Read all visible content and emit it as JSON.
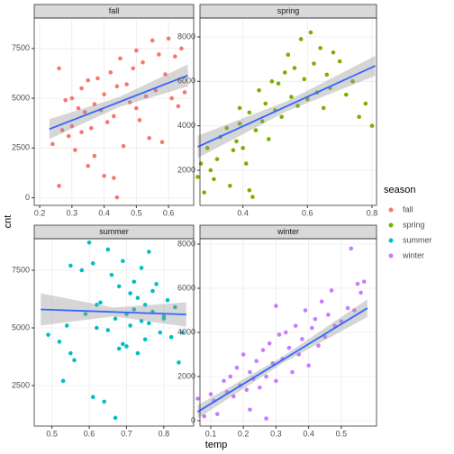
{
  "figure": {
    "xlabel": "temp",
    "ylabel": "cnt",
    "legend_title": "season"
  },
  "chart_data": [
    {
      "type": "scatter",
      "title": "fall",
      "xlim": [
        0.183,
        0.678
      ],
      "ylim": [
        -380,
        9030
      ],
      "xticks": [
        0.2,
        0.3,
        0.4,
        0.5,
        0.6
      ],
      "yticks": [
        0,
        2500,
        5000,
        7500
      ],
      "grid": true,
      "series": [
        {
          "name": "fall",
          "color": "#F8766D",
          "x": [
            0.24,
            0.26,
            0.27,
            0.28,
            0.29,
            0.3,
            0.3,
            0.31,
            0.32,
            0.33,
            0.33,
            0.34,
            0.35,
            0.35,
            0.36,
            0.37,
            0.37,
            0.38,
            0.39,
            0.4,
            0.4,
            0.41,
            0.42,
            0.43,
            0.43,
            0.44,
            0.45,
            0.46,
            0.47,
            0.48,
            0.49,
            0.5,
            0.5,
            0.51,
            0.52,
            0.53,
            0.54,
            0.55,
            0.56,
            0.57,
            0.58,
            0.59,
            0.6,
            0.61,
            0.62,
            0.63,
            0.64,
            0.65,
            0.26,
            0.44
          ],
          "values": [
            2700,
            600,
            3400,
            4900,
            3100,
            5000,
            3600,
            2400,
            4500,
            5500,
            3300,
            4300,
            1600,
            5900,
            3500,
            4700,
            2100,
            6000,
            4400,
            1100,
            5200,
            3800,
            6300,
            4100,
            1000,
            5600,
            7000,
            2600,
            5700,
            4800,
            6500,
            4500,
            7400,
            3900,
            6800,
            5100,
            3000,
            7900,
            5400,
            7200,
            2800,
            6200,
            8000,
            5000,
            7100,
            4600,
            7500,
            5300,
            6500,
            22
          ]
        }
      ],
      "fit": {
        "color": "#3366FF",
        "x": [
          0.23,
          0.445,
          0.66
        ],
        "values": [
          3450,
          4800,
          6150
        ],
        "lower": [
          2950,
          4550,
          5600
        ],
        "upper": [
          3950,
          5050,
          6700
        ]
      }
    },
    {
      "type": "scatter",
      "title": "spring",
      "xlim": [
        0.267,
        0.814
      ],
      "ylim": [
        419,
        8851
      ],
      "xticks": [
        0.4,
        0.6,
        0.8
      ],
      "yticks": [
        2000,
        4000,
        6000,
        8000
      ],
      "grid": true,
      "series": [
        {
          "name": "spring",
          "color": "#7CAE00",
          "x": [
            0.26,
            0.27,
            0.28,
            0.29,
            0.3,
            0.31,
            0.32,
            0.33,
            0.35,
            0.36,
            0.37,
            0.38,
            0.39,
            0.4,
            0.41,
            0.42,
            0.43,
            0.44,
            0.45,
            0.46,
            0.47,
            0.48,
            0.49,
            0.5,
            0.51,
            0.52,
            0.53,
            0.54,
            0.55,
            0.56,
            0.57,
            0.58,
            0.59,
            0.6,
            0.61,
            0.62,
            0.63,
            0.64,
            0.65,
            0.66,
            0.67,
            0.68,
            0.7,
            0.72,
            0.74,
            0.76,
            0.78,
            0.8,
            0.42,
            0.39
          ],
          "values": [
            1700,
            2300,
            1000,
            3000,
            2000,
            1600,
            2500,
            3500,
            3900,
            1300,
            2900,
            3300,
            4100,
            3000,
            2300,
            4600,
            800,
            3800,
            5600,
            4200,
            5000,
            3400,
            6000,
            4700,
            5900,
            4400,
            6400,
            7200,
            5300,
            6600,
            4900,
            7900,
            6100,
            5200,
            8200,
            6800,
            5500,
            7500,
            4800,
            6300,
            5700,
            7300,
            6900,
            5400,
            6000,
            4400,
            5000,
            4000,
            1100,
            4800
          ]
        }
      ],
      "fit": {
        "color": "#3366FF",
        "x": [
          0.26,
          0.535,
          0.81
        ],
        "values": [
          3050,
          4875,
          6700
        ],
        "lower": [
          2550,
          4650,
          6250
        ],
        "upper": [
          3550,
          5100,
          7150
        ]
      }
    },
    {
      "type": "scatter",
      "title": "summer",
      "xlim": [
        0.4525,
        0.88
      ],
      "ylim": [
        742,
        8867
      ],
      "xticks": [
        0.5,
        0.6,
        0.7,
        0.8
      ],
      "yticks": [
        2500,
        5000,
        7500
      ],
      "grid": true,
      "series": [
        {
          "name": "summer",
          "color": "#00BFC4",
          "x": [
            0.49,
            0.52,
            0.53,
            0.55,
            0.56,
            0.58,
            0.59,
            0.6,
            0.61,
            0.62,
            0.63,
            0.64,
            0.65,
            0.66,
            0.67,
            0.67,
            0.68,
            0.69,
            0.69,
            0.7,
            0.7,
            0.71,
            0.71,
            0.72,
            0.72,
            0.73,
            0.73,
            0.74,
            0.74,
            0.75,
            0.75,
            0.76,
            0.76,
            0.77,
            0.78,
            0.79,
            0.8,
            0.81,
            0.82,
            0.83,
            0.84,
            0.85,
            0.62,
            0.65,
            0.55,
            0.54,
            0.68,
            0.61,
            0.77,
            0.8
          ],
          "values": [
            4700,
            4400,
            2700,
            7700,
            3600,
            7500,
            5600,
            8700,
            2000,
            5000,
            6100,
            1800,
            4900,
            7300,
            1100,
            5400,
            6800,
            4300,
            7900,
            5600,
            4200,
            6500,
            5100,
            7000,
            5800,
            3900,
            6300,
            5300,
            7600,
            4500,
            6000,
            5200,
            8300,
            5700,
            6900,
            4800,
            5500,
            6200,
            4600,
            5900,
            3500,
            4800,
            6000,
            8400,
            3900,
            5100,
            4100,
            7800,
            6600,
            5400
          ]
        }
      ],
      "fit": {
        "color": "#3366FF",
        "x": [
          0.47,
          0.665,
          0.86
        ],
        "values": [
          5800,
          5690,
          5580
        ],
        "lower": [
          5100,
          5500,
          5050
        ],
        "upper": [
          6500,
          5880,
          6110
        ]
      }
    },
    {
      "type": "scatter",
      "title": "winter",
      "xlim": [
        0.067,
        0.608
      ],
      "ylim": [
        -245,
        8245
      ],
      "xticks": [
        0.1,
        0.2,
        0.3,
        0.4,
        0.5
      ],
      "yticks": [
        0,
        2000,
        4000,
        6000,
        8000
      ],
      "grid": true,
      "series": [
        {
          "name": "winter",
          "color": "#C77CFF",
          "x": [
            0.06,
            0.08,
            0.1,
            0.11,
            0.12,
            0.14,
            0.15,
            0.16,
            0.17,
            0.18,
            0.19,
            0.2,
            0.21,
            0.22,
            0.23,
            0.24,
            0.25,
            0.26,
            0.27,
            0.28,
            0.29,
            0.3,
            0.31,
            0.32,
            0.33,
            0.34,
            0.35,
            0.36,
            0.37,
            0.38,
            0.39,
            0.4,
            0.41,
            0.42,
            0.43,
            0.44,
            0.45,
            0.46,
            0.47,
            0.48,
            0.5,
            0.52,
            0.53,
            0.55,
            0.56,
            0.57,
            0.54,
            0.22,
            0.3,
            0.27
          ],
          "values": [
            1000,
            200,
            1200,
            900,
            300,
            1800,
            1300,
            2000,
            1100,
            2400,
            1600,
            3000,
            1400,
            2200,
            1900,
            2700,
            1500,
            3200,
            2000,
            3500,
            2600,
            1800,
            3900,
            2800,
            4000,
            3300,
            2200,
            4300,
            3000,
            3700,
            5000,
            2500,
            4200,
            4600,
            3400,
            5400,
            3800,
            4800,
            5900,
            4300,
            4500,
            5100,
            7800,
            6200,
            5800,
            6300,
            5000,
            500,
            5200,
            100
          ]
        }
      ],
      "fit": {
        "color": "#3366FF",
        "x": [
          0.06,
          0.32,
          0.58
        ],
        "values": [
          400,
          2750,
          5100
        ],
        "lower": [
          100,
          2600,
          4700
        ],
        "upper": [
          700,
          2900,
          5500
        ]
      }
    }
  ]
}
